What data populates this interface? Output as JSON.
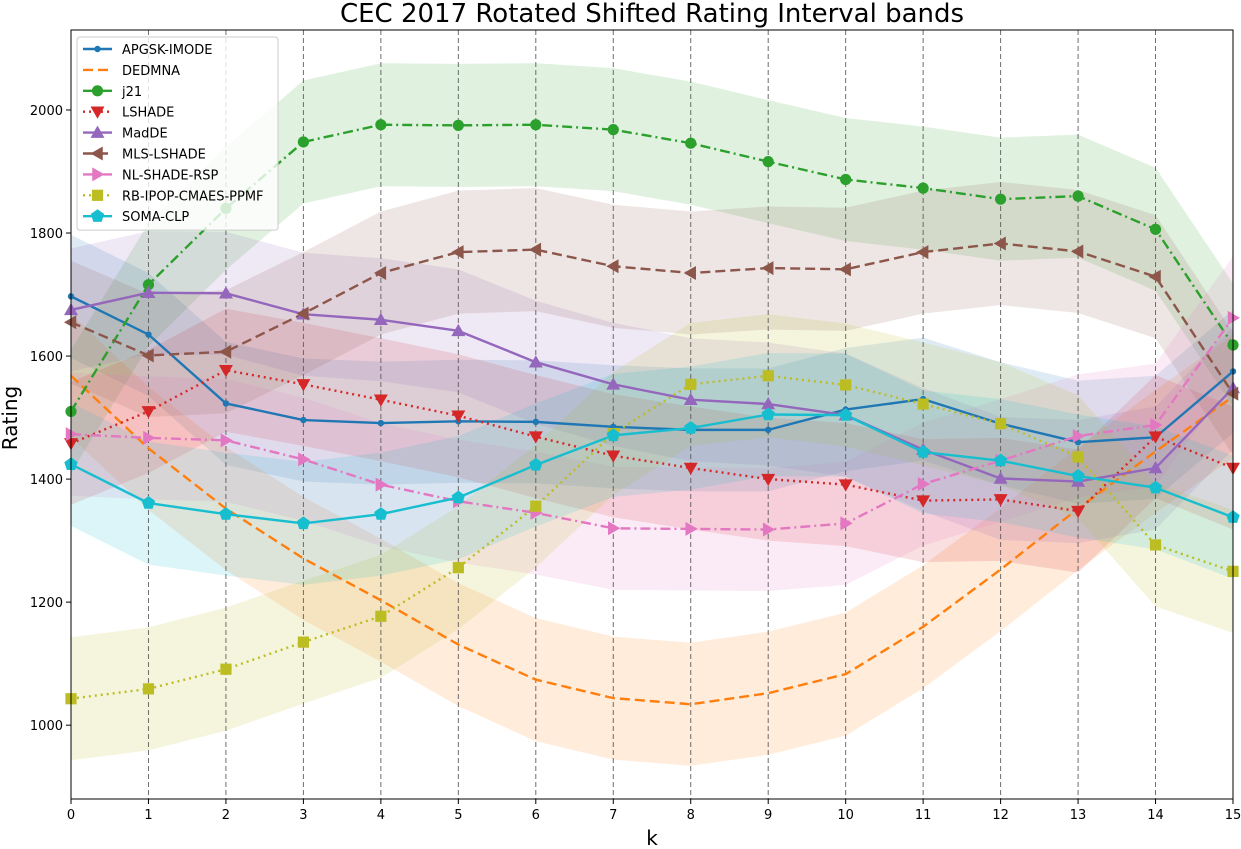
{
  "chart_data": {
    "type": "line",
    "title": "CEC 2017 Rotated Shifted Rating Interval bands",
    "xlabel": "k",
    "ylabel": "Rating",
    "xlim": [
      0,
      15
    ],
    "ylim": [
      880,
      2130
    ],
    "x": [
      0,
      1,
      2,
      3,
      4,
      5,
      6,
      7,
      8,
      9,
      10,
      11,
      12,
      13,
      14,
      15
    ],
    "xticks": [
      "0",
      "1",
      "2",
      "3",
      "4",
      "5",
      "6",
      "7",
      "8",
      "9",
      "10",
      "11",
      "12",
      "13",
      "14",
      "15"
    ],
    "yticks": [
      "1000",
      "1200",
      "1400",
      "1600",
      "1800",
      "2000"
    ],
    "ytick_values": [
      1000,
      1200,
      1400,
      1600,
      1800,
      2000
    ],
    "vertical_dashed_lines_at": [
      1,
      2,
      3,
      4,
      5,
      6,
      7,
      8,
      9,
      10,
      11,
      12,
      13,
      14
    ],
    "legend_position": "upper-left",
    "band_halfwidth": 100,
    "series": [
      {
        "name": "APGSK-IMODE",
        "color": "#1f77b4",
        "dash": "solid",
        "marker": "dot",
        "values": [
          1697,
          1635,
          1523,
          1496,
          1491,
          1494,
          1493,
          1485,
          1480,
          1480,
          1513,
          1530,
          1490,
          1460,
          1468,
          1575
        ]
      },
      {
        "name": "DEDMNA",
        "color": "#ff7f0e",
        "dash": "dashed",
        "marker": "none",
        "values": [
          1568,
          1450,
          1352,
          1271,
          1203,
          1131,
          1074,
          1044,
          1034,
          1052,
          1083,
          1160,
          1253,
          1352,
          1445,
          1534
        ]
      },
      {
        "name": "j21",
        "color": "#2ca02c",
        "dash": "dashdot",
        "marker": "circle",
        "values": [
          1510,
          1716,
          1840,
          1948,
          1976,
          1975,
          1976,
          1968,
          1946,
          1916,
          1887,
          1873,
          1855,
          1860,
          1806,
          1618
        ]
      },
      {
        "name": "LSHADE",
        "color": "#d62728",
        "dash": "dotted",
        "marker": "triangle-down",
        "values": [
          1458,
          1510,
          1577,
          1554,
          1529,
          1503,
          1469,
          1438,
          1418,
          1400,
          1391,
          1365,
          1367,
          1348,
          1469,
          1418
        ]
      },
      {
        "name": "MadDE",
        "color": "#9467bd",
        "dash": "solid",
        "marker": "triangle-up",
        "values": [
          1675,
          1703,
          1702,
          1668,
          1659,
          1641,
          1590,
          1554,
          1529,
          1522,
          1504,
          1448,
          1401,
          1396,
          1418,
          1548
        ]
      },
      {
        "name": "MLS-LSHADE",
        "color": "#8c564b",
        "dash": "dashed",
        "marker": "triangle-left",
        "values": [
          1655,
          1601,
          1607,
          1669,
          1735,
          1769,
          1773,
          1746,
          1735,
          1743,
          1741,
          1769,
          1783,
          1770,
          1729,
          1539
        ]
      },
      {
        "name": "NL-SHADE-RSP",
        "color": "#e377c2",
        "dash": "dashdot",
        "marker": "triangle-right",
        "values": [
          1473,
          1467,
          1463,
          1432,
          1391,
          1364,
          1345,
          1320,
          1319,
          1318,
          1328,
          1392,
          1430,
          1470,
          1488,
          1662
        ]
      },
      {
        "name": "RB-IPOP-CMAES-PPMF",
        "color": "#bcbd22",
        "dash": "dotted",
        "marker": "square",
        "values": [
          1043,
          1059,
          1091,
          1135,
          1177,
          1256,
          1356,
          1474,
          1554,
          1568,
          1553,
          1522,
          1490,
          1436,
          1293,
          1250
        ]
      },
      {
        "name": "SOMA-CLP",
        "color": "#17becf",
        "dash": "solid",
        "marker": "pentagon",
        "values": [
          1424,
          1361,
          1343,
          1328,
          1343,
          1370,
          1423,
          1471,
          1483,
          1505,
          1504,
          1444,
          1430,
          1405,
          1386,
          1338
        ]
      }
    ]
  }
}
